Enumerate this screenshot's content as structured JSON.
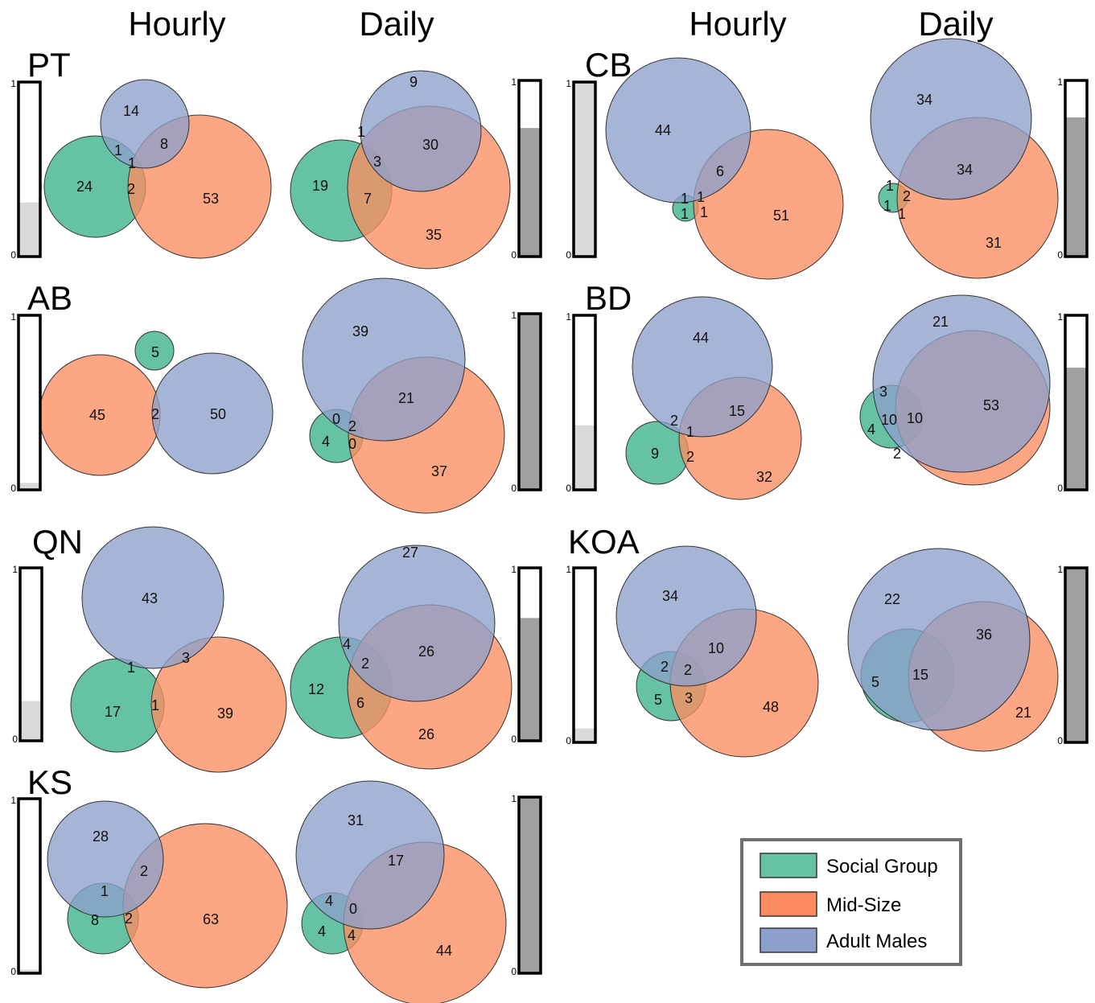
{
  "colors": {
    "social_group": "#66c2a5",
    "mid_size": "#fc8d62",
    "adult_males": "#8da0cb",
    "bar_hourly": "#d9d9d9",
    "bar_daily": "#a0a0a0"
  },
  "headers": {
    "left_hourly": "Hourly",
    "left_daily": "Daily",
    "right_hourly": "Hourly",
    "right_daily": "Daily"
  },
  "bar_ticks": {
    "top": "1",
    "bottom": "0"
  },
  "legend": {
    "items": [
      {
        "label": "Social Group",
        "color": "#66c2a5"
      },
      {
        "label": "Mid-Size",
        "color": "#fc8d62"
      },
      {
        "label": "Adult Males",
        "color": "#8da0cb"
      }
    ]
  },
  "panels": [
    {
      "site": "PT",
      "hourly": {
        "bar": 0.31,
        "labels": [
          "14",
          "24",
          "53",
          "1",
          "1",
          "8",
          "2"
        ]
      },
      "daily": {
        "bar": 0.73,
        "labels": [
          "9",
          "19",
          "35",
          "1",
          "3",
          "30",
          "7"
        ]
      }
    },
    {
      "site": "CB",
      "hourly": {
        "bar": 1.0,
        "labels": [
          "44",
          "51",
          "6",
          "1",
          "1",
          "1",
          "1"
        ]
      },
      "daily": {
        "bar": 0.79,
        "labels": [
          "34",
          "31",
          "34",
          "1",
          "2",
          "1",
          "1"
        ]
      }
    },
    {
      "site": "AB",
      "hourly": {
        "bar": 0.04,
        "labels": [
          "5",
          "45",
          "50",
          "2"
        ]
      },
      "daily": {
        "bar": 1.0,
        "labels": [
          "39",
          "37",
          "21",
          "0",
          "2",
          "4",
          "0"
        ]
      }
    },
    {
      "site": "BD",
      "hourly": {
        "bar": 0.37,
        "labels": [
          "44",
          "9",
          "32",
          "2",
          "15",
          "1",
          "2"
        ]
      },
      "daily": {
        "bar": 0.7,
        "labels": [
          "21",
          "53",
          "10",
          "3",
          "10",
          "4",
          "2"
        ]
      }
    },
    {
      "site": "QN",
      "hourly": {
        "bar": 0.23,
        "labels": [
          "43",
          "17",
          "39",
          "1",
          "3",
          "1"
        ]
      },
      "daily": {
        "bar": 0.71,
        "labels": [
          "27",
          "26",
          "26",
          "4",
          "2",
          "12",
          "6"
        ]
      }
    },
    {
      "site": "KOA",
      "hourly": {
        "bar": 0.08,
        "labels": [
          "34",
          "48",
          "10",
          "2",
          "2",
          "5",
          "3"
        ]
      },
      "daily": {
        "bar": 1.0,
        "labels": [
          "22",
          "36",
          "15",
          "5",
          "21"
        ]
      }
    },
    {
      "site": "KS",
      "hourly": {
        "bar": 0.02,
        "labels": [
          "28",
          "63",
          "2",
          "1",
          "8",
          "2"
        ]
      },
      "daily": {
        "bar": 1.0,
        "labels": [
          "31",
          "17",
          "4",
          "0",
          "4",
          "4",
          "44"
        ]
      }
    }
  ]
}
